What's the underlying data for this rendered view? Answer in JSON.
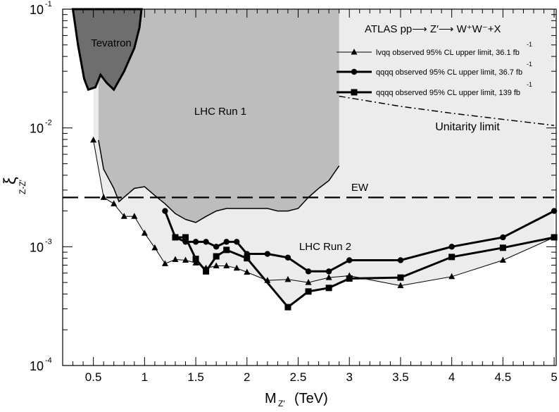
{
  "chart_data": {
    "type": "line",
    "title": "ATLAS  pp⟶ Z′⟶ W⁺W⁻+X",
    "xlabel": "M",
    "xlabel_sub": "Z′",
    "xlabel_unit": "(TeV)",
    "ylabel": "ξ",
    "ylabel_sub": "Z-Z′",
    "xlim": [
      0.2,
      5.02
    ],
    "ylim_log10": [
      -4,
      -1
    ],
    "y_scale": "log",
    "x_ticks": [
      0.5,
      1,
      1.5,
      2,
      2.5,
      3,
      3.5,
      4,
      4.5,
      5
    ],
    "x_tick_labels": [
      "0.5",
      "1",
      "1.5",
      "2",
      "2.5",
      "3",
      "3.5",
      "4",
      "4.5",
      "5"
    ],
    "y_ticks": [
      {
        "value": 0.1,
        "base": "10",
        "exp": "-1"
      },
      {
        "value": 0.01,
        "base": "10",
        "exp": "-2"
      },
      {
        "value": 0.001,
        "base": "10",
        "exp": "-3"
      },
      {
        "value": 0.0001,
        "base": "10",
        "exp": "-4"
      }
    ],
    "regions": [
      {
        "name": "Tevatron",
        "label": "Tevatron",
        "color": "#6e6e6e",
        "boundary": [
          [
            0.3,
            0.1
          ],
          [
            0.35,
            0.05
          ],
          [
            0.41,
            0.026
          ],
          [
            0.45,
            0.021
          ],
          [
            0.52,
            0.022
          ],
          [
            0.57,
            0.028
          ],
          [
            0.63,
            0.024
          ],
          [
            0.7,
            0.021
          ],
          [
            0.8,
            0.03
          ],
          [
            0.9,
            0.047
          ],
          [
            0.95,
            0.07
          ],
          [
            0.97,
            0.1
          ]
        ]
      },
      {
        "name": "LHC Run 1",
        "label": "LHC Run 1",
        "color": "#bdbdbd",
        "boundary": [
          [
            0.55,
            0.1
          ],
          [
            0.55,
            0.0079
          ],
          [
            0.6,
            0.0045
          ],
          [
            0.7,
            0.0031
          ],
          [
            0.75,
            0.0024
          ],
          [
            0.9,
            0.0031
          ],
          [
            1.0,
            0.0032
          ],
          [
            1.1,
            0.0027
          ],
          [
            1.2,
            0.0023
          ],
          [
            1.3,
            0.0019
          ],
          [
            1.4,
            0.0017
          ],
          [
            1.5,
            0.0016
          ],
          [
            1.6,
            0.0018
          ],
          [
            1.7,
            0.002
          ],
          [
            1.8,
            0.0021
          ],
          [
            1.9,
            0.0021
          ],
          [
            2.0,
            0.0021
          ],
          [
            2.1,
            0.0021
          ],
          [
            2.2,
            0.0021
          ],
          [
            2.3,
            0.002
          ],
          [
            2.4,
            0.002
          ],
          [
            2.5,
            0.0021
          ],
          [
            2.6,
            0.0026
          ],
          [
            2.7,
            0.0031
          ],
          [
            2.8,
            0.0036
          ],
          [
            2.9,
            0.0048
          ],
          [
            2.9,
            0.1
          ]
        ]
      },
      {
        "name": "LHC Run 2",
        "label": "LHC Run 2",
        "color": "#ececec"
      }
    ],
    "series": [
      {
        "name": "lvqq observed 95% CL upper limit, 36.1 fb",
        "lumi_exp": "-1",
        "marker": "triangle",
        "points": [
          [
            0.5,
            0.0079
          ],
          [
            0.6,
            0.0026
          ],
          [
            0.7,
            0.0023
          ],
          [
            0.8,
            0.0018
          ],
          [
            0.9,
            0.0018
          ],
          [
            1.0,
            0.0013
          ],
          [
            1.1,
            0.00098
          ],
          [
            1.2,
            0.00072
          ],
          [
            1.3,
            0.00078
          ],
          [
            1.4,
            0.00077
          ],
          [
            1.5,
            0.00073
          ],
          [
            1.6,
            0.00066
          ],
          [
            1.7,
            0.00069
          ],
          [
            1.8,
            0.00069
          ],
          [
            1.9,
            0.00066
          ],
          [
            2.0,
            0.00061
          ],
          [
            2.2,
            0.00052
          ],
          [
            2.4,
            0.00053
          ],
          [
            2.6,
            0.0005
          ],
          [
            2.8,
            0.00055
          ],
          [
            3.0,
            0.00057
          ],
          [
            3.5,
            0.00047
          ],
          [
            4.0,
            0.00056
          ],
          [
            4.5,
            0.00077
          ],
          [
            5.0,
            0.0012
          ]
        ]
      },
      {
        "name": "qqqq observed 95% CL upper limit, 36.7 fb",
        "lumi_exp": "-1",
        "marker": "circle",
        "points": [
          [
            1.2,
            0.002
          ],
          [
            1.3,
            0.0012
          ],
          [
            1.4,
            0.0011
          ],
          [
            1.5,
            0.0011
          ],
          [
            1.6,
            0.0011
          ],
          [
            1.7,
            0.001
          ],
          [
            1.8,
            0.0011
          ],
          [
            1.9,
            0.0011
          ],
          [
            2.0,
            0.00087
          ],
          [
            2.2,
            0.00087
          ],
          [
            2.4,
            0.00081
          ],
          [
            2.6,
            0.00062
          ],
          [
            2.8,
            0.00062
          ],
          [
            3.0,
            0.00077
          ],
          [
            3.5,
            0.00077
          ],
          [
            4.0,
            0.001
          ],
          [
            4.5,
            0.0012
          ],
          [
            5.0,
            0.002
          ]
        ]
      },
      {
        "name": "qqqq observed 95% CL upper limit, 139  fb",
        "lumi_exp": "-1",
        "marker": "square",
        "points": [
          [
            1.3,
            0.0012
          ],
          [
            1.4,
            0.0012
          ],
          [
            1.5,
            0.00079
          ],
          [
            1.6,
            0.00062
          ],
          [
            1.7,
            0.00083
          ],
          [
            1.8,
            0.00094
          ],
          [
            2.0,
            0.0008
          ],
          [
            2.4,
            0.00031
          ],
          [
            2.6,
            0.00042
          ],
          [
            2.8,
            0.00045
          ],
          [
            3.0,
            0.00054
          ],
          [
            3.5,
            0.00055
          ],
          [
            4.0,
            0.00082
          ],
          [
            4.5,
            0.00098
          ],
          [
            5.0,
            0.0012
          ]
        ]
      },
      {
        "name": "Unitarity limit",
        "style": "dash-dot",
        "points": [
          [
            2.9,
            0.0185
          ],
          [
            3.5,
            0.0152
          ],
          [
            4.0,
            0.0133
          ],
          [
            4.5,
            0.0118
          ],
          [
            5.0,
            0.0105
          ]
        ]
      },
      {
        "name": "EW",
        "style": "dashed",
        "points": [
          [
            0.2,
            0.0026
          ],
          [
            5.0,
            0.0026
          ]
        ]
      }
    ],
    "grid": false,
    "legend_position": "top-right"
  }
}
